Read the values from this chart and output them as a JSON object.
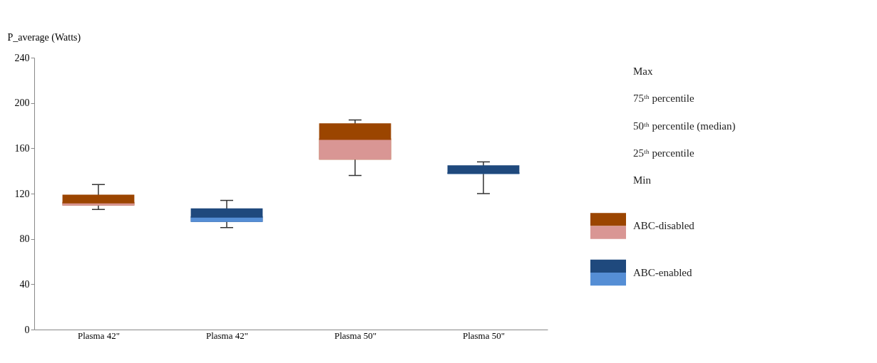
{
  "chart_data": {
    "type": "box",
    "ylabel": "P_average (Watts)",
    "categories": [
      "Plasma 42\"",
      "Plasma 42\"",
      "Plasma 50\"",
      "Plasma 50\""
    ],
    "ylim": [
      0,
      240
    ],
    "yticks": [
      0,
      40,
      80,
      120,
      160,
      200,
      240
    ],
    "grid": false,
    "legend": "right",
    "series": [
      {
        "name": "ABC-disabled",
        "color": "#9b4500",
        "boxes": [
          {
            "low": 106,
            "q1": 109.5,
            "median": 112,
            "q3": 119,
            "high": 128
          },
          null,
          {
            "low": 136,
            "q1": 150,
            "median": 168,
            "q3": 182,
            "high": 185
          },
          null
        ]
      },
      {
        "type": "bar",
        "color": "#d99694",
        "base": [
          109.5,
          null,
          150,
          null
        ],
        "values": [
          2.5,
          null,
          18,
          null
        ]
      },
      {
        "name": "ABC-enabled",
        "color": "#1f497d",
        "boxes": [
          null,
          {
            "low": 90,
            "q1": 95,
            "median": 99.5,
            "q3": 107,
            "high": 114
          },
          null,
          {
            "low": 120,
            "q1": 137.5,
            "median": 138,
            "q3": 145,
            "high": 148
          }
        ]
      },
      {
        "type": "bar",
        "color": "#558ed5",
        "base": [
          null,
          95,
          null,
          137.5
        ],
        "values": [
          null,
          4.5,
          null,
          0.5
        ]
      }
    ],
    "annotations": [
      "Max",
      "75ᵗʰ  percentile",
      "50ᵗʰ percentile (median)",
      "25ᵗʰ  percentile",
      "Min"
    ]
  }
}
